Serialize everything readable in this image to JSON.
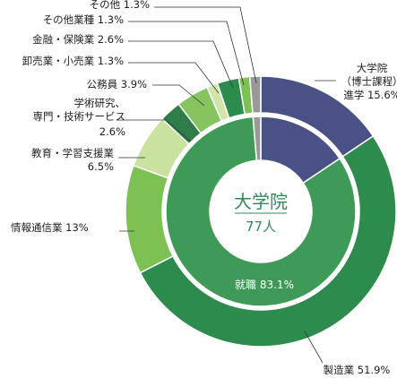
{
  "chart_data": {
    "type": "pie",
    "center": {
      "title": "大学院",
      "count": "77人"
    },
    "inner_ring": [
      {
        "name": "大学院（博士課程）進学",
        "value": 15.6,
        "color": "#4a5285"
      },
      {
        "name": "就職",
        "label": "就職 83.1%",
        "value": 83.1,
        "color": "#3e9a56"
      },
      {
        "name": "その他",
        "value": 1.3,
        "color": "#999999"
      }
    ],
    "outer_ring": [
      {
        "name": "大学院（博士課程）進学",
        "label_lines": [
          "大学院",
          "（博士課程）",
          "進学 15.6%"
        ],
        "value": 15.6,
        "color": "#4a5285"
      },
      {
        "name": "製造業",
        "label_lines": [
          "製造業 51.9%"
        ],
        "value": 51.9,
        "color": "#2e8b4e"
      },
      {
        "name": "情報通信業",
        "label_lines": [
          "情報通信業 13%"
        ],
        "value": 13.0,
        "color": "#7dc155"
      },
      {
        "name": "教育・学習支援業",
        "label_lines": [
          "教育・学習支援業",
          "6.5%"
        ],
        "value": 6.5,
        "color": "#c9e2a0"
      },
      {
        "name": "学術研究、専門・技術サービス",
        "label_lines": [
          "学術研究、",
          "専門・技術サービス",
          "2.6%"
        ],
        "value": 2.6,
        "color": "#2f7d47"
      },
      {
        "name": "公務員",
        "label_lines": [
          "公務員 3.9%"
        ],
        "value": 3.9,
        "color": "#86c45f"
      },
      {
        "name": "卸売業・小売業",
        "label_lines": [
          "卸売業・小売業 1.3%"
        ],
        "value": 1.3,
        "color": "#cfe6a8"
      },
      {
        "name": "金融・保険業",
        "label_lines": [
          "金融・保険業 2.6%"
        ],
        "value": 2.6,
        "color": "#2e8b4e"
      },
      {
        "name": "その他業種",
        "label_lines": [
          "その他業種 1.3%"
        ],
        "value": 1.3,
        "color": "#7dc155"
      },
      {
        "name": "その他",
        "label_lines": [
          "その他 1.3%"
        ],
        "value": 1.3,
        "color": "#999999"
      }
    ]
  }
}
